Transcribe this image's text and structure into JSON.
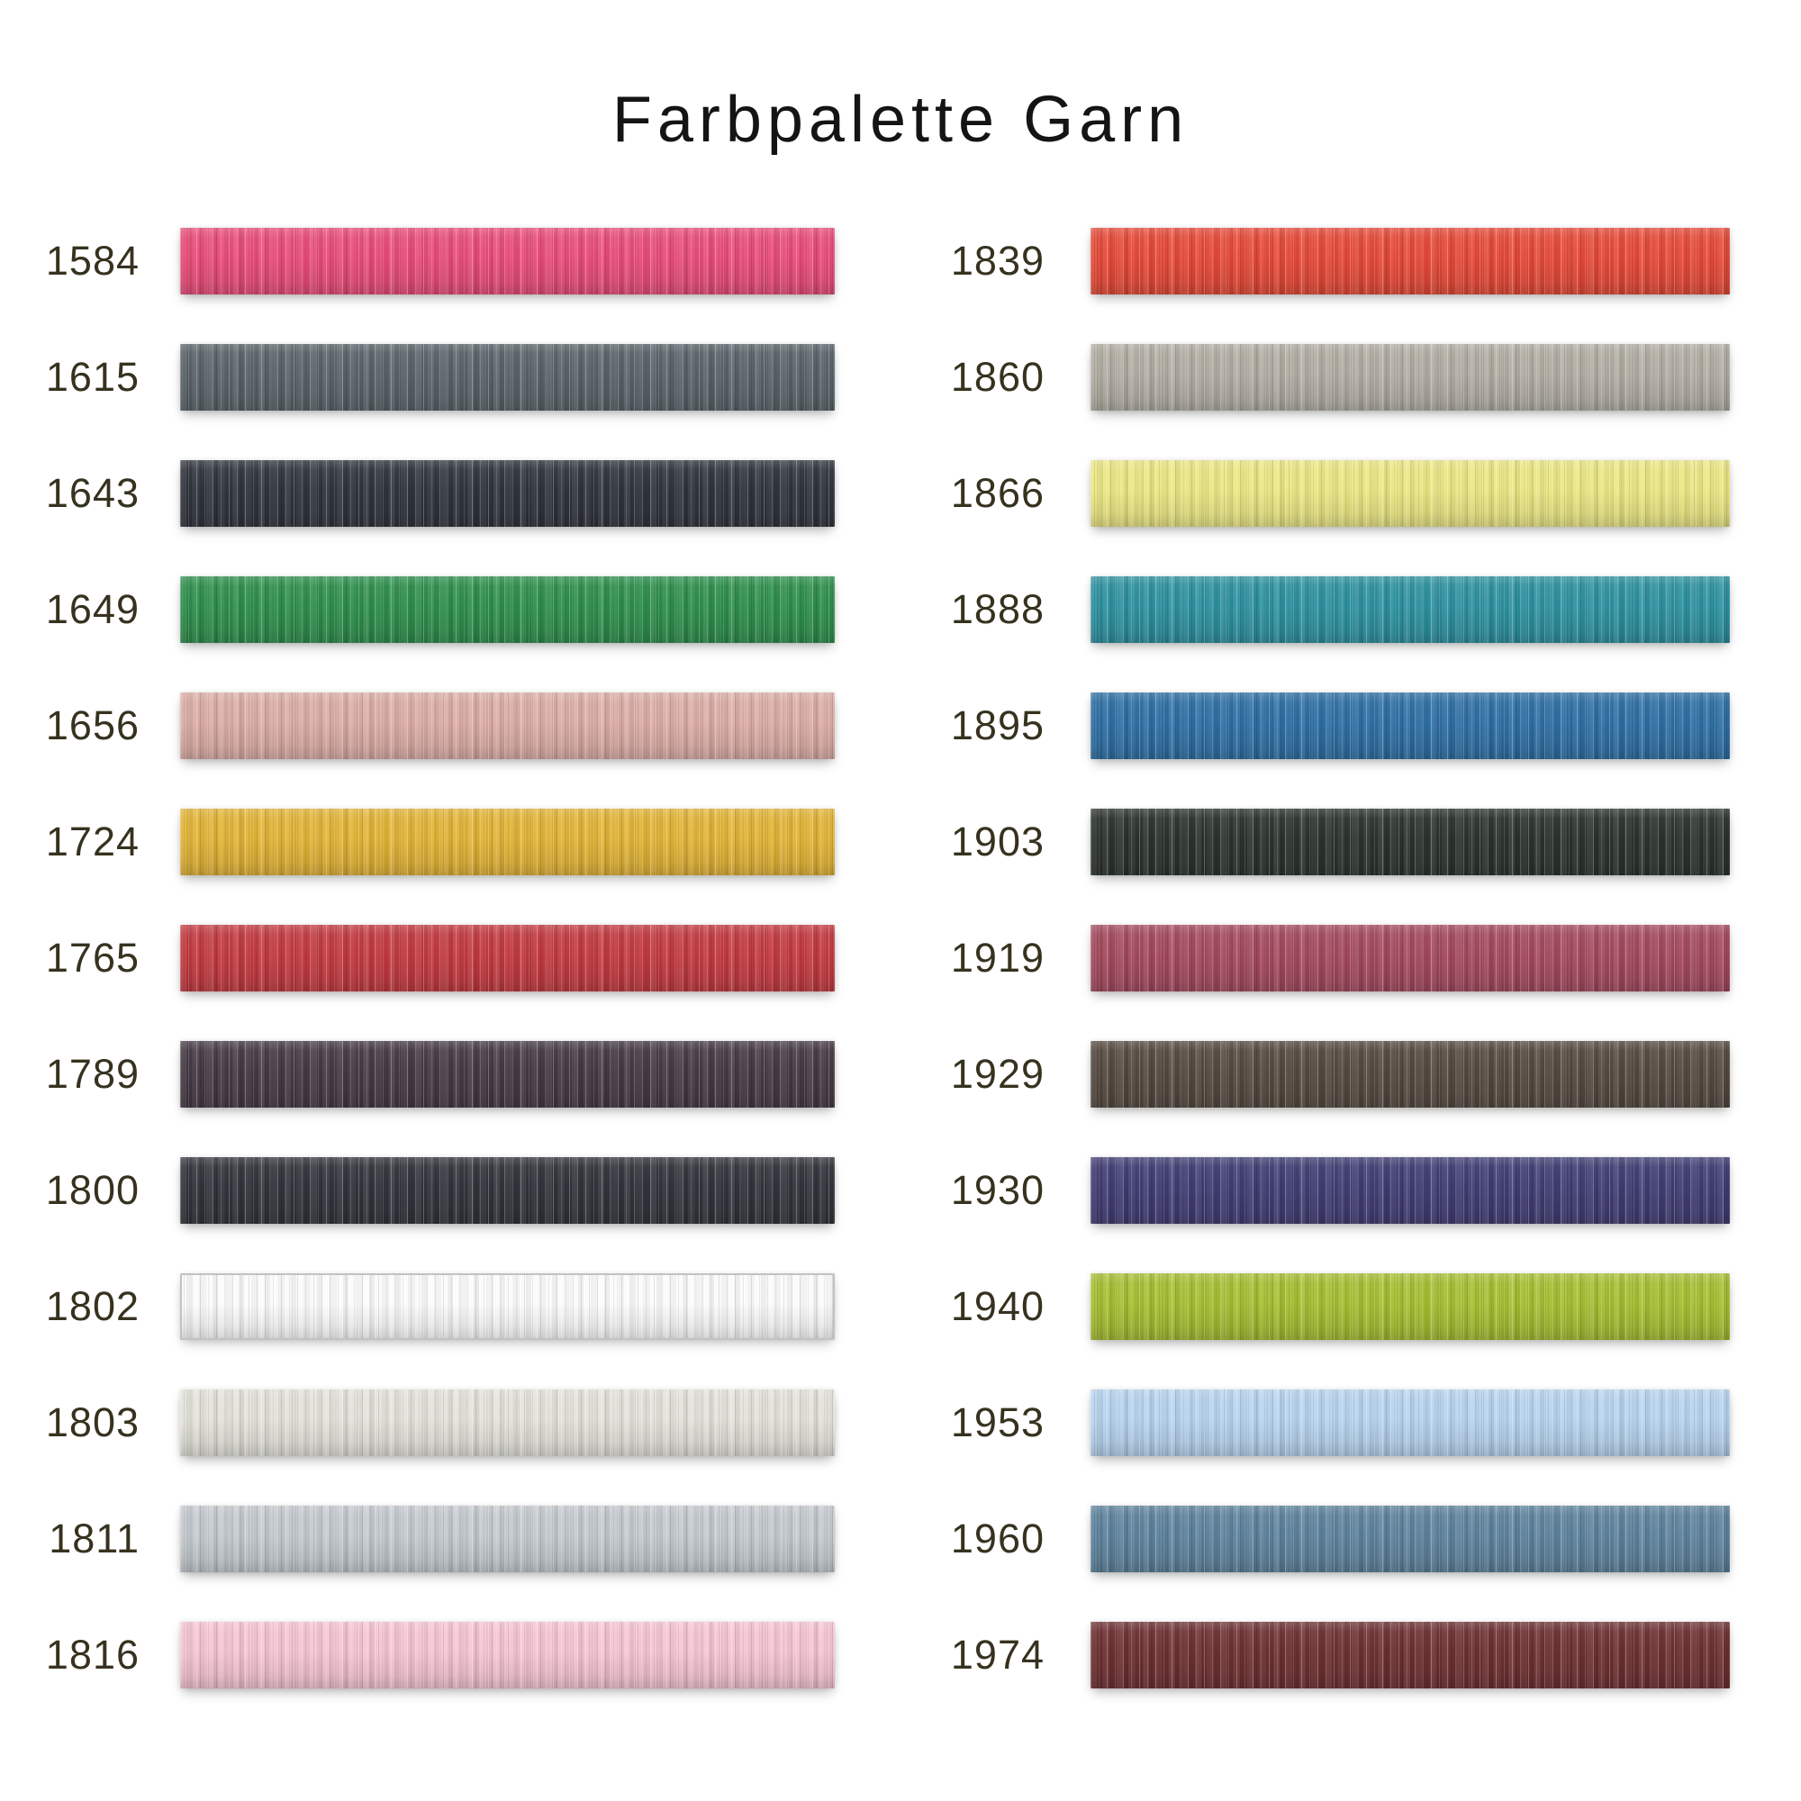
{
  "title": "Farbpalette Garn",
  "styles": {
    "page_background": "#ffffff",
    "title_color": "#141414",
    "label_color": "#37321f",
    "light_swatch_border": "#c2c2c2"
  },
  "columns": [
    {
      "items": [
        {
          "code": "1584",
          "color": "#e94d7a"
        },
        {
          "code": "1615",
          "color": "#5a646a"
        },
        {
          "code": "1643",
          "color": "#31353e"
        },
        {
          "code": "1649",
          "color": "#2f8f4d"
        },
        {
          "code": "1656",
          "color": "#dcaea6"
        },
        {
          "code": "1724",
          "color": "#e2b437"
        },
        {
          "code": "1765",
          "color": "#c33b41"
        },
        {
          "code": "1789",
          "color": "#473a46"
        },
        {
          "code": "1800",
          "color": "#32353c"
        },
        {
          "code": "1802",
          "color": "#fbfbfb"
        },
        {
          "code": "1803",
          "color": "#e3e2da"
        },
        {
          "code": "1811",
          "color": "#c4cacf"
        },
        {
          "code": "1816",
          "color": "#f6c5d2"
        }
      ]
    },
    {
      "items": [
        {
          "code": "1839",
          "color": "#e64a38"
        },
        {
          "code": "1860",
          "color": "#b2aea4"
        },
        {
          "code": "1866",
          "color": "#ebe784"
        },
        {
          "code": "1888",
          "color": "#2e92a0"
        },
        {
          "code": "1895",
          "color": "#2f70a5"
        },
        {
          "code": "1903",
          "color": "#2d342e"
        },
        {
          "code": "1919",
          "color": "#a44a5e"
        },
        {
          "code": "1929",
          "color": "#564a41"
        },
        {
          "code": "1930",
          "color": "#413e74"
        },
        {
          "code": "1940",
          "color": "#a6bf32"
        },
        {
          "code": "1953",
          "color": "#b7d4ef"
        },
        {
          "code": "1960",
          "color": "#5e839d"
        },
        {
          "code": "1974",
          "color": "#6e3132"
        }
      ]
    }
  ],
  "chart_data": {
    "type": "table",
    "title": "Farbpalette Garn",
    "columns": [
      "code",
      "color"
    ],
    "rows": [
      [
        "1584",
        "#e94d7a"
      ],
      [
        "1615",
        "#5a646a"
      ],
      [
        "1643",
        "#31353e"
      ],
      [
        "1649",
        "#2f8f4d"
      ],
      [
        "1656",
        "#dcaea6"
      ],
      [
        "1724",
        "#e2b437"
      ],
      [
        "1765",
        "#c33b41"
      ],
      [
        "1789",
        "#473a46"
      ],
      [
        "1800",
        "#32353c"
      ],
      [
        "1802",
        "#fbfbfb"
      ],
      [
        "1803",
        "#e3e2da"
      ],
      [
        "1811",
        "#c4cacf"
      ],
      [
        "1816",
        "#f6c5d2"
      ],
      [
        "1839",
        "#e64a38"
      ],
      [
        "1860",
        "#b2aea4"
      ],
      [
        "1866",
        "#ebe784"
      ],
      [
        "1888",
        "#2e92a0"
      ],
      [
        "1895",
        "#2f70a5"
      ],
      [
        "1903",
        "#2d342e"
      ],
      [
        "1919",
        "#a44a5e"
      ],
      [
        "1929",
        "#564a41"
      ],
      [
        "1930",
        "#413e74"
      ],
      [
        "1940",
        "#a6bf32"
      ],
      [
        "1953",
        "#b7d4ef"
      ],
      [
        "1960",
        "#5e839d"
      ],
      [
        "1974",
        "#6e3132"
      ]
    ],
    "layout": {
      "columns_of_swatches": 2,
      "rows_per_column": 13,
      "grid": false,
      "legend": false
    }
  }
}
